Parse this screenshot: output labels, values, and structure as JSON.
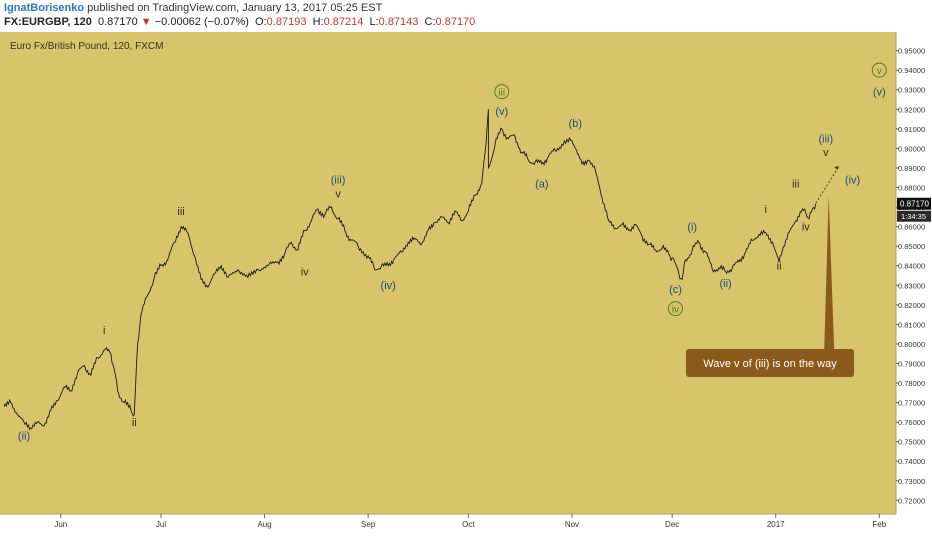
{
  "header": {
    "author": "IgnatBorisenko",
    "published": "published on TradingView.com, January 13, 2017 05:25 EST",
    "symbol": "FX:EURGBP, 120",
    "last": "0.87170",
    "change_arrow": "▼",
    "change": "−0.00062 (−0.07%)",
    "o_label": "O:",
    "o_value": "0.87193",
    "h_label": "H:",
    "h_value": "0.87214",
    "l_label": "L:",
    "l_value": "0.87143",
    "c_label": "C:",
    "c_value": "0.87170"
  },
  "colors": {
    "background": "#d8c46b",
    "price_line": "#1a1a1a",
    "wave_blue": "#1f4a7a",
    "wave_dark": "#3a2a10",
    "circle_green": "#5a7a2a",
    "callout": "#8b5a1a",
    "price_tag": "#111111"
  },
  "chart_data": {
    "type": "line",
    "title": "Euro Fx/British Pound, 120, FXCM",
    "x_ticks": [
      "Jun",
      "Jul",
      "Aug",
      "Sep",
      "Oct",
      "Nov",
      "Dec",
      "2017",
      "Feb"
    ],
    "y_ticks": [
      "0.95000",
      "0.94000",
      "0.93000",
      "0.92000",
      "0.91000",
      "0.90000",
      "0.89000",
      "0.88000",
      "0.87000",
      "0.86000",
      "0.85000",
      "0.84000",
      "0.83000",
      "0.82000",
      "0.81000",
      "0.80000",
      "0.79000",
      "0.78000",
      "0.77000",
      "0.76000",
      "0.75000",
      "0.74000",
      "0.73000",
      "0.72000"
    ],
    "ylim": [
      0.713,
      0.958
    ],
    "price_tag": "0.87170",
    "countdown_tag": "1:34:35",
    "series": [
      {
        "points": [
          [
            "May 15",
            0.768
          ],
          [
            "May 17",
            0.77
          ],
          [
            "May 19",
            0.764
          ],
          [
            "May 21",
            0.76
          ],
          [
            "May 23",
            0.757
          ],
          [
            "May 25",
            0.76
          ],
          [
            "May 27",
            0.758
          ],
          [
            "May 29",
            0.766
          ],
          [
            "May 31",
            0.771
          ],
          [
            "Jun 02",
            0.778
          ],
          [
            "Jun 04",
            0.776
          ],
          [
            "Jun 06",
            0.785
          ],
          [
            "Jun 08",
            0.789
          ],
          [
            "Jun 10",
            0.784
          ],
          [
            "Jun 12",
            0.793
          ],
          [
            "Jun 14",
            0.797
          ],
          [
            "Jun 16",
            0.795
          ],
          [
            "Jun 17",
            0.787
          ],
          [
            "Jun 18",
            0.776
          ],
          [
            "Jun 20",
            0.77
          ],
          [
            "Jun 22",
            0.766
          ],
          [
            "Jun 23",
            0.764
          ],
          [
            "Jun 24",
            0.8
          ],
          [
            "Jun 25",
            0.815
          ],
          [
            "Jun 27",
            0.825
          ],
          [
            "Jun 29",
            0.834
          ],
          [
            "Jul 01",
            0.84
          ],
          [
            "Jul 03",
            0.843
          ],
          [
            "Jul 05",
            0.852
          ],
          [
            "Jul 07",
            0.86
          ],
          [
            "Jul 09",
            0.857
          ],
          [
            "Jul 11",
            0.845
          ],
          [
            "Jul 13",
            0.833
          ],
          [
            "Jul 15",
            0.829
          ],
          [
            "Jul 17",
            0.836
          ],
          [
            "Jul 19",
            0.84
          ],
          [
            "Jul 21",
            0.834
          ],
          [
            "Jul 24",
            0.838
          ],
          [
            "Jul 27",
            0.834
          ],
          [
            "Jul 30",
            0.838
          ],
          [
            "Aug 02",
            0.84
          ],
          [
            "Aug 05",
            0.842
          ],
          [
            "Aug 07",
            0.846
          ],
          [
            "Aug 09",
            0.852
          ],
          [
            "Aug 11",
            0.848
          ],
          [
            "Aug 13",
            0.858
          ],
          [
            "Aug 15",
            0.863
          ],
          [
            "Aug 17",
            0.869
          ],
          [
            "Aug 19",
            0.866
          ],
          [
            "Aug 21",
            0.87
          ],
          [
            "Aug 23",
            0.864
          ],
          [
            "Aug 25",
            0.858
          ],
          [
            "Aug 27",
            0.853
          ],
          [
            "Aug 29",
            0.85
          ],
          [
            "Sep 01",
            0.845
          ],
          [
            "Sep 03",
            0.838
          ],
          [
            "Sep 05",
            0.84
          ],
          [
            "Sep 07",
            0.84
          ],
          [
            "Sep 09",
            0.844
          ],
          [
            "Sep 11",
            0.847
          ],
          [
            "Sep 13",
            0.852
          ],
          [
            "Sep 15",
            0.854
          ],
          [
            "Sep 17",
            0.851
          ],
          [
            "Sep 19",
            0.858
          ],
          [
            "Sep 21",
            0.862
          ],
          [
            "Sep 23",
            0.865
          ],
          [
            "Sep 25",
            0.862
          ],
          [
            "Sep 27",
            0.868
          ],
          [
            "Sep 29",
            0.863
          ],
          [
            "Oct 01",
            0.868
          ],
          [
            "Oct 03",
            0.876
          ],
          [
            "Oct 05",
            0.882
          ],
          [
            "Oct 06",
            0.898
          ],
          [
            "Oct 07",
            0.92
          ],
          [
            "Oct 07",
            0.89
          ],
          [
            "Oct 09",
            0.902
          ],
          [
            "Oct 11",
            0.91
          ],
          [
            "Oct 13",
            0.905
          ],
          [
            "Oct 15",
            0.906
          ],
          [
            "Oct 17",
            0.898
          ],
          [
            "Oct 19",
            0.894
          ],
          [
            "Oct 21",
            0.893
          ],
          [
            "Oct 23",
            0.892
          ],
          [
            "Oct 25",
            0.896
          ],
          [
            "Oct 27",
            0.899
          ],
          [
            "Oct 29",
            0.902
          ],
          [
            "Nov 01",
            0.904
          ],
          [
            "Nov 02",
            0.9
          ],
          [
            "Nov 04",
            0.892
          ],
          [
            "Nov 06",
            0.894
          ],
          [
            "Nov 08",
            0.889
          ],
          [
            "Nov 10",
            0.875
          ],
          [
            "Nov 12",
            0.863
          ],
          [
            "Nov 14",
            0.859
          ],
          [
            "Nov 16",
            0.861
          ],
          [
            "Nov 18",
            0.858
          ],
          [
            "Nov 20",
            0.861
          ],
          [
            "Nov 22",
            0.855
          ],
          [
            "Nov 24",
            0.851
          ],
          [
            "Nov 26",
            0.848
          ],
          [
            "Nov 28",
            0.849
          ],
          [
            "Nov 30",
            0.846
          ],
          [
            "Dec 01",
            0.844
          ],
          [
            "Dec 03",
            0.836
          ],
          [
            "Dec 04",
            0.833
          ],
          [
            "Dec 05",
            0.843
          ],
          [
            "Dec 07",
            0.848
          ],
          [
            "Dec 09",
            0.852
          ],
          [
            "Dec 11",
            0.847
          ],
          [
            "Dec 13",
            0.838
          ],
          [
            "Dec 15",
            0.839
          ],
          [
            "Dec 17",
            0.837
          ],
          [
            "Dec 19",
            0.839
          ],
          [
            "Dec 21",
            0.842
          ],
          [
            "Dec 23",
            0.847
          ],
          [
            "Dec 25",
            0.853
          ],
          [
            "Dec 27",
            0.856
          ],
          [
            "Dec 29",
            0.857
          ],
          [
            "Dec 31",
            0.852
          ],
          [
            "Jan 02",
            0.842
          ],
          [
            "Jan 03",
            0.848
          ],
          [
            "Jan 05",
            0.857
          ],
          [
            "Jan 07",
            0.863
          ],
          [
            "Jan 09",
            0.869
          ],
          [
            "Jan 10",
            0.867
          ],
          [
            "Jan 11",
            0.864
          ],
          [
            "Jan 12",
            0.869
          ],
          [
            "Jan 13",
            0.8717
          ]
        ]
      }
    ],
    "forecast": [
      [
        "Jan 13",
        0.872
      ],
      [
        "Jan 20",
        0.891
      ]
    ],
    "wave_labels": [
      {
        "text": "(ii)",
        "x": "May 21",
        "y": 0.751,
        "color": "blue"
      },
      {
        "text": "i",
        "x": "Jun 14",
        "y": 0.805,
        "color": "dark"
      },
      {
        "text": "ii",
        "x": "Jun 23",
        "y": 0.758,
        "color": "dark"
      },
      {
        "text": "iii",
        "x": "Jul 07",
        "y": 0.866,
        "color": "dark"
      },
      {
        "text": "iv",
        "x": "Aug 13",
        "y": 0.835,
        "color": "dark"
      },
      {
        "text": "(iii)",
        "x": "Aug 23",
        "y": 0.882,
        "color": "blue"
      },
      {
        "text": "v",
        "x": "Aug 23",
        "y": 0.875,
        "color": "dark"
      },
      {
        "text": "(iv)",
        "x": "Sep 07",
        "y": 0.828,
        "color": "blue"
      },
      {
        "text": "(v)",
        "x": "Oct 11",
        "y": 0.917,
        "color": "blue"
      },
      {
        "text": "(a)",
        "x": "Oct 23",
        "y": 0.88,
        "color": "blue"
      },
      {
        "text": "(b)",
        "x": "Nov 02",
        "y": 0.911,
        "color": "blue"
      },
      {
        "text": "(i)",
        "x": "Dec 07",
        "y": 0.858,
        "color": "blue"
      },
      {
        "text": "(c)",
        "x": "Dec 02",
        "y": 0.826,
        "color": "blue"
      },
      {
        "text": "(ii)",
        "x": "Dec 17",
        "y": 0.829,
        "color": "blue"
      },
      {
        "text": "i",
        "x": "Dec 29",
        "y": 0.867,
        "color": "dark"
      },
      {
        "text": "ii",
        "x": "Jan 02",
        "y": 0.838,
        "color": "dark"
      },
      {
        "text": "iii",
        "x": "Jan 07",
        "y": 0.88,
        "color": "dark"
      },
      {
        "text": "iv",
        "x": "Jan 10",
        "y": 0.858,
        "color": "dark"
      },
      {
        "text": "(iii)",
        "x": "Jan 16",
        "y": 0.903,
        "color": "blue"
      },
      {
        "text": "v",
        "x": "Jan 16",
        "y": 0.896,
        "color": "dark"
      },
      {
        "text": "(iv)",
        "x": "Jan 24",
        "y": 0.882,
        "color": "blue"
      },
      {
        "text": "(v)",
        "x": "Feb 01",
        "y": 0.927,
        "color": "blue"
      }
    ],
    "circled_labels": [
      {
        "text": "iii",
        "x": "Oct 11",
        "y": 0.927
      },
      {
        "text": "iv",
        "x": "Dec 02",
        "y": 0.816
      },
      {
        "text": "v",
        "x": "Feb 01",
        "y": 0.938
      }
    ],
    "annotation": {
      "text": "Wave v of (iii) is on the way",
      "anchor_x": "Jan 17",
      "anchor_y": 0.876
    }
  }
}
